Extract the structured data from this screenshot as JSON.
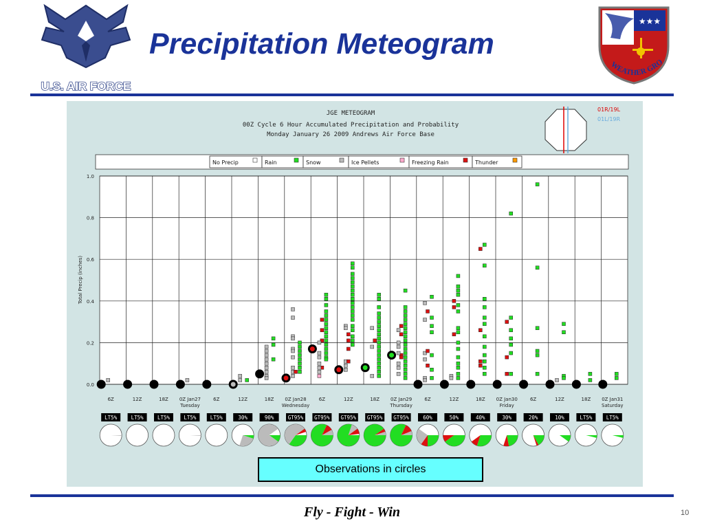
{
  "slide": {
    "title": "Precipitation Meteogram",
    "observations_label": "Observations in circles",
    "motto": "Fly - Fight - Win",
    "page_number": "10",
    "logo_left_text": "U.S. AIR FORCE",
    "logo_right_text": "2nd WEATHER GROUP"
  },
  "colors": {
    "title": "#1a3399",
    "rule": "#1a3399",
    "panel_bg": "#d2e4e4",
    "rain": "#22dd22",
    "snow": "#bbbbbb",
    "ice_pellets": "#ffaacc",
    "freezing_rain": "#dd1111",
    "thunder": "#ff9900",
    "no_precip": "#ffffff",
    "runway_red": "#dd0000",
    "runway_blue": "#66aadd"
  },
  "chart_data": {
    "type": "scatter",
    "title_lines": [
      "JGE METEOGRAM",
      "00Z Cycle 6 Hour Accumulated Precipitation and Probability",
      "Monday January 26 2009 Andrews Air Force Base"
    ],
    "runway_labels": [
      "01R/19L",
      "01L/19R"
    ],
    "legend": [
      {
        "label": "No Precip",
        "type": "no_precip"
      },
      {
        "label": "Rain",
        "type": "rain"
      },
      {
        "label": "Snow",
        "type": "snow"
      },
      {
        "label": "Ice Pellets",
        "type": "ice_pellets"
      },
      {
        "label": "Freezing Rain",
        "type": "freezing_rain"
      },
      {
        "label": "Thunder",
        "type": "thunder"
      }
    ],
    "ylabel": "Total Precip (inches)",
    "ylim": [
      0.0,
      1.0
    ],
    "yticks": [
      "0.0",
      "0.2",
      "0.4",
      "0.6",
      "0.8",
      "1.0"
    ],
    "x_ticks": [
      {
        "label": "6Z",
        "sub": ""
      },
      {
        "label": "12Z",
        "sub": ""
      },
      {
        "label": "18Z",
        "sub": ""
      },
      {
        "label": "0Z Jan27",
        "sub": "Tuesday"
      },
      {
        "label": "6Z",
        "sub": ""
      },
      {
        "label": "12Z",
        "sub": ""
      },
      {
        "label": "18Z",
        "sub": ""
      },
      {
        "label": "0Z Jan28",
        "sub": "Wednesday"
      },
      {
        "label": "6Z",
        "sub": ""
      },
      {
        "label": "12Z",
        "sub": ""
      },
      {
        "label": "18Z",
        "sub": ""
      },
      {
        "label": "0Z Jan29",
        "sub": "Thursday"
      },
      {
        "label": "6Z",
        "sub": ""
      },
      {
        "label": "12Z",
        "sub": ""
      },
      {
        "label": "18Z",
        "sub": ""
      },
      {
        "label": "0Z Jan30",
        "sub": "Friday"
      },
      {
        "label": "6Z",
        "sub": ""
      },
      {
        "label": "12Z",
        "sub": ""
      },
      {
        "label": "18Z",
        "sub": ""
      },
      {
        "label": "0Z Jan31",
        "sub": "Saturday"
      }
    ],
    "ensemble_points": [
      {
        "t": 0,
        "type": "snow",
        "v": [
          0.02
        ]
      },
      {
        "t": 3,
        "type": "snow",
        "v": [
          0.02
        ]
      },
      {
        "t": 5,
        "type": "snow",
        "v": [
          0.04,
          0.02
        ]
      },
      {
        "t": 5,
        "type": "rain",
        "v": [
          0.02
        ]
      },
      {
        "t": 6,
        "type": "snow",
        "v": [
          0.18,
          0.16,
          0.14,
          0.12,
          0.1,
          0.08,
          0.06,
          0.04,
          0.03
        ]
      },
      {
        "t": 6,
        "type": "rain",
        "v": [
          0.22,
          0.19,
          0.12
        ]
      },
      {
        "t": 7,
        "type": "snow",
        "v": [
          0.36,
          0.32,
          0.23,
          0.22,
          0.17,
          0.16,
          0.13,
          0.08,
          0.06,
          0.04
        ]
      },
      {
        "t": 7,
        "type": "rain",
        "v": [
          0.2,
          0.18,
          0.16,
          0.14,
          0.12,
          0.1,
          0.08,
          0.06
        ]
      },
      {
        "t": 7,
        "type": "freezing_rain",
        "v": [
          0.06
        ]
      },
      {
        "t": 8,
        "type": "rain",
        "v": [
          0.43,
          0.41,
          0.38,
          0.35,
          0.33,
          0.31,
          0.29,
          0.27,
          0.25,
          0.23,
          0.21,
          0.19,
          0.17,
          0.15,
          0.13,
          0.12
        ]
      },
      {
        "t": 8,
        "type": "freezing_rain",
        "v": [
          0.31,
          0.26,
          0.21,
          0.08
        ]
      },
      {
        "t": 8,
        "type": "snow",
        "v": [
          0.2,
          0.15,
          0.13,
          0.1,
          0.08,
          0.06
        ]
      },
      {
        "t": 8,
        "type": "ice_pellets",
        "v": [
          0.04
        ]
      },
      {
        "t": 9,
        "type": "rain",
        "v": [
          0.58,
          0.56,
          0.53,
          0.51,
          0.49,
          0.47,
          0.45,
          0.43,
          0.41,
          0.39,
          0.37,
          0.35,
          0.33,
          0.31,
          0.28,
          0.26,
          0.23,
          0.21,
          0.19
        ]
      },
      {
        "t": 9,
        "type": "snow",
        "v": [
          0.28,
          0.27,
          0.11,
          0.09,
          0.07
        ]
      },
      {
        "t": 9,
        "type": "freezing_rain",
        "v": [
          0.24,
          0.21,
          0.17,
          0.11
        ]
      },
      {
        "t": 10,
        "type": "rain",
        "v": [
          0.43,
          0.41,
          0.37,
          0.34,
          0.32,
          0.3,
          0.28,
          0.26,
          0.24,
          0.22,
          0.2,
          0.18,
          0.16,
          0.14,
          0.12,
          0.1,
          0.08,
          0.06,
          0.04
        ]
      },
      {
        "t": 10,
        "type": "snow",
        "v": [
          0.27,
          0.18,
          0.04
        ]
      },
      {
        "t": 10,
        "type": "freezing_rain",
        "v": [
          0.21
        ]
      },
      {
        "t": 11,
        "type": "rain",
        "v": [
          0.45,
          0.37,
          0.35,
          0.33,
          0.31,
          0.29,
          0.27,
          0.25,
          0.23,
          0.21,
          0.19,
          0.17,
          0.15,
          0.13,
          0.11,
          0.09,
          0.07,
          0.05,
          0.03
        ]
      },
      {
        "t": 11,
        "type": "freezing_rain",
        "v": [
          0.28,
          0.24,
          0.14,
          0.13
        ]
      },
      {
        "t": 11,
        "type": "snow",
        "v": [
          0.26,
          0.2,
          0.18,
          0.15,
          0.1,
          0.08,
          0.05
        ]
      },
      {
        "t": 12,
        "type": "snow",
        "v": [
          0.39,
          0.31,
          0.15,
          0.12,
          0.03,
          0.02
        ]
      },
      {
        "t": 12,
        "type": "freezing_rain",
        "v": [
          0.35,
          0.16,
          0.09
        ]
      },
      {
        "t": 12,
        "type": "rain",
        "v": [
          0.42,
          0.32,
          0.28,
          0.25,
          0.14,
          0.07,
          0.03
        ]
      },
      {
        "t": 13,
        "type": "rain",
        "v": [
          0.52,
          0.47,
          0.45,
          0.43,
          0.38,
          0.35,
          0.27,
          0.25,
          0.2,
          0.17,
          0.13,
          0.1,
          0.08,
          0.05,
          0.03
        ]
      },
      {
        "t": 13,
        "type": "freezing_rain",
        "v": [
          0.4,
          0.37,
          0.24
        ]
      },
      {
        "t": 13,
        "type": "snow",
        "v": [
          0.04,
          0.03
        ]
      },
      {
        "t": 14,
        "type": "rain",
        "v": [
          0.67,
          0.57,
          0.41,
          0.37,
          0.32,
          0.29,
          0.23,
          0.18,
          0.14,
          0.11,
          0.08,
          0.05
        ]
      },
      {
        "t": 14,
        "type": "freezing_rain",
        "v": [
          0.65,
          0.26,
          0.11,
          0.09
        ]
      },
      {
        "t": 15,
        "type": "rain",
        "v": [
          0.82,
          0.32,
          0.26,
          0.22,
          0.19,
          0.15,
          0.05
        ]
      },
      {
        "t": 15,
        "type": "freezing_rain",
        "v": [
          0.3,
          0.13,
          0.05
        ]
      },
      {
        "t": 16,
        "type": "rain",
        "v": [
          0.96,
          0.56,
          0.27,
          0.16,
          0.14,
          0.05
        ]
      },
      {
        "t": 17,
        "type": "rain",
        "v": [
          0.29,
          0.25,
          0.04,
          0.03
        ]
      },
      {
        "t": 17,
        "type": "snow",
        "v": [
          0.02
        ]
      },
      {
        "t": 18,
        "type": "rain",
        "v": [
          0.05,
          0.02
        ]
      },
      {
        "t": 19,
        "type": "rain",
        "v": [
          0.05,
          0.03
        ]
      }
    ],
    "observations": [
      {
        "t": 0,
        "value": 0.0,
        "type": "no_precip"
      },
      {
        "t": 1,
        "value": 0.0,
        "type": "no_precip"
      },
      {
        "t": 2,
        "value": 0.0,
        "type": "no_precip"
      },
      {
        "t": 3,
        "value": 0.0,
        "type": "no_precip"
      },
      {
        "t": 4,
        "value": 0.0,
        "type": "no_precip"
      },
      {
        "t": 5,
        "value": 0.0,
        "type": "snow"
      },
      {
        "t": 6,
        "value": 0.05,
        "type": "no_precip"
      },
      {
        "t": 7,
        "value": 0.03,
        "type": "freezing_rain"
      },
      {
        "t": 8,
        "value": 0.17,
        "type": "freezing_rain"
      },
      {
        "t": 9,
        "value": 0.07,
        "type": "freezing_rain"
      },
      {
        "t": 10,
        "value": 0.08,
        "type": "rain"
      },
      {
        "t": 11,
        "value": 0.14,
        "type": "rain"
      },
      {
        "t": 12,
        "value": 0.0,
        "type": "no_precip"
      },
      {
        "t": 13,
        "value": 0.0,
        "type": "no_precip"
      },
      {
        "t": 14,
        "value": 0.0,
        "type": "no_precip"
      },
      {
        "t": 15,
        "value": 0.0,
        "type": "no_precip"
      },
      {
        "t": 16,
        "value": 0.0,
        "type": "no_precip"
      },
      {
        "t": 17,
        "value": 0.0,
        "type": "no_precip"
      },
      {
        "t": 18,
        "value": 0.0,
        "type": "no_precip"
      },
      {
        "t": 19,
        "value": 0.0,
        "type": "no_precip"
      }
    ],
    "probabilities": [
      {
        "label": "LT5%",
        "pie": [
          {
            "type": "snow",
            "frac": 0.01
          }
        ]
      },
      {
        "label": "LT5%",
        "pie": []
      },
      {
        "label": "LT5%",
        "pie": []
      },
      {
        "label": "LT5%",
        "pie": [
          {
            "type": "snow",
            "frac": 0.01
          }
        ]
      },
      {
        "label": "LT5%",
        "pie": []
      },
      {
        "label": "30%",
        "pie": [
          {
            "type": "rain",
            "frac": 0.05
          },
          {
            "type": "snow",
            "frac": 0.25
          }
        ]
      },
      {
        "label": "90%",
        "pie": [
          {
            "type": "rain",
            "frac": 0.1
          },
          {
            "type": "snow",
            "frac": 0.8
          }
        ]
      },
      {
        "label": "GT95%",
        "pie": [
          {
            "type": "rain",
            "frac": 0.35
          },
          {
            "type": "snow",
            "frac": 0.55
          },
          {
            "type": "freezing_rain",
            "frac": 0.05
          }
        ]
      },
      {
        "label": "GT95%",
        "pie": [
          {
            "type": "rain",
            "frac": 0.82
          },
          {
            "type": "freezing_rain",
            "frac": 0.1
          },
          {
            "type": "snow",
            "frac": 0.08
          }
        ]
      },
      {
        "label": "GT95%",
        "pie": [
          {
            "type": "rain",
            "frac": 0.8
          },
          {
            "type": "snow",
            "frac": 0.1
          },
          {
            "type": "freezing_rain",
            "frac": 0.08
          }
        ]
      },
      {
        "label": "GT95%",
        "pie": [
          {
            "type": "rain",
            "frac": 0.9
          },
          {
            "type": "freezing_rain",
            "frac": 0.05
          },
          {
            "type": "snow",
            "frac": 0.05
          }
        ]
      },
      {
        "label": "GT95%",
        "pie": [
          {
            "type": "rain",
            "frac": 0.82
          },
          {
            "type": "freezing_rain",
            "frac": 0.12
          },
          {
            "type": "snow",
            "frac": 0.06
          }
        ]
      },
      {
        "label": "60%",
        "pie": [
          {
            "type": "rain",
            "frac": 0.25
          },
          {
            "type": "freezing_rain",
            "frac": 0.1
          },
          {
            "type": "snow",
            "frac": 0.25
          }
        ]
      },
      {
        "label": "50%",
        "pie": [
          {
            "type": "rain",
            "frac": 0.4
          },
          {
            "type": "freezing_rain",
            "frac": 0.1
          }
        ]
      },
      {
        "label": "40%",
        "pie": [
          {
            "type": "rain",
            "frac": 0.3
          },
          {
            "type": "freezing_rain",
            "frac": 0.1
          }
        ]
      },
      {
        "label": "30%",
        "pie": [
          {
            "type": "rain",
            "frac": 0.22
          },
          {
            "type": "freezing_rain",
            "frac": 0.08
          }
        ]
      },
      {
        "label": "20%",
        "pie": [
          {
            "type": "rain",
            "frac": 0.17
          },
          {
            "type": "freezing_rain",
            "frac": 0.03
          }
        ]
      },
      {
        "label": "10%",
        "pie": [
          {
            "type": "rain",
            "frac": 0.1
          }
        ]
      },
      {
        "label": "LT5%",
        "pie": [
          {
            "type": "rain",
            "frac": 0.04
          }
        ]
      },
      {
        "label": "LT5%",
        "pie": [
          {
            "type": "rain",
            "frac": 0.04
          }
        ]
      }
    ]
  }
}
